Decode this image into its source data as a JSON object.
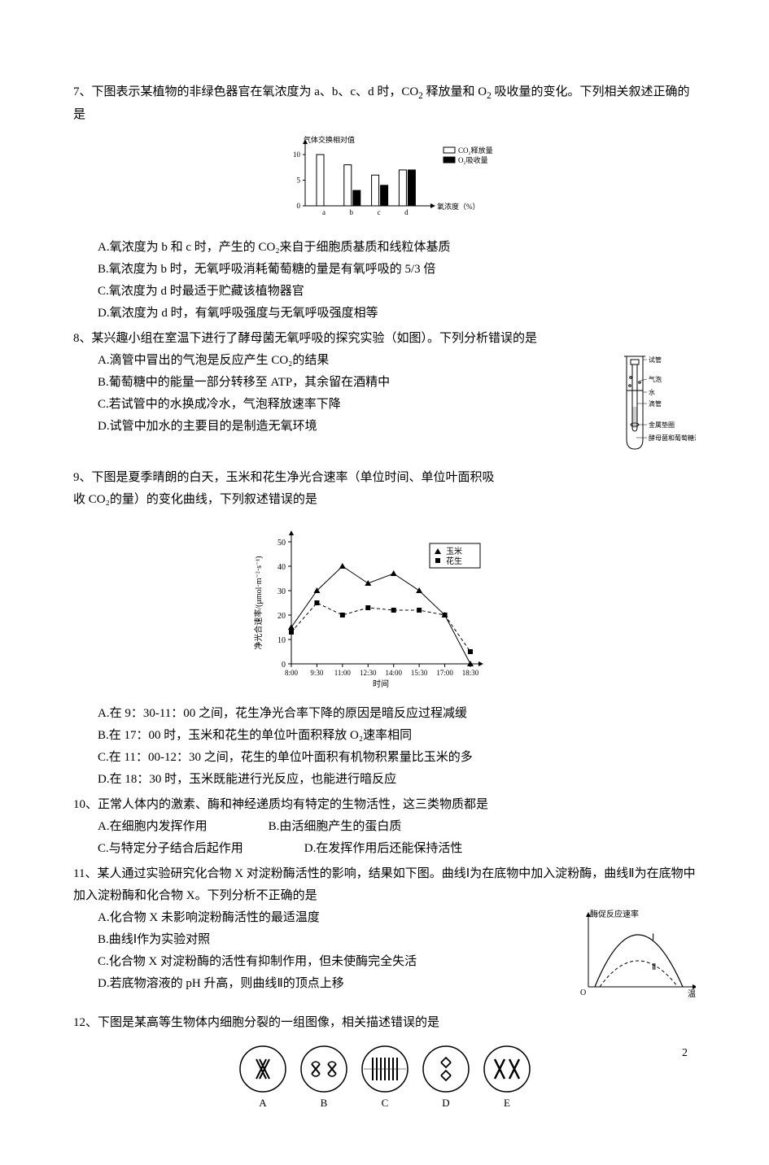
{
  "page_number": "2",
  "q7": {
    "stem_a": "7、下图表示某植物的非绿色器官在氧浓度为 a、b、c、d 时，CO",
    "stem_b": " 释放量和 O",
    "stem_c": " 吸收量的变化。下列相关叙述正确的是",
    "chart": {
      "type": "bar",
      "y_label": "气体交换相对值",
      "x_label": "氧浓度（%）",
      "legend": {
        "co2": "CO₂释放量",
        "o2": "O₂吸收量"
      },
      "categories": [
        "a",
        "b",
        "c",
        "d"
      ],
      "co2_values": [
        10,
        8,
        6,
        7
      ],
      "o2_values": [
        0,
        3,
        4,
        7
      ],
      "yticks": [
        0,
        5,
        10
      ],
      "co2_color": "#ffffff",
      "o2_color": "#000000",
      "bar_stroke": "#000000",
      "axis_color": "#000000",
      "font_size": 9
    },
    "optA": "A.氧浓度为 b 和 c 时，产生的 CO₂来自于细胞质基质和线粒体基质",
    "optB": "B.氧浓度为 b 时，无氧呼吸消耗葡萄糖的量是有氧呼吸的 5/3 倍",
    "optC": "C.氧浓度为 d 时最适于贮藏该植物器官",
    "optD": "D.氧浓度为 d 时，有氧呼吸强度与无氧呼吸强度相等"
  },
  "q8": {
    "stem": "8、某兴趣小组在室温下进行了酵母菌无氧呼吸的探究实验（如图）。下列分析错误的是",
    "optA": "A.滴管中冒出的气泡是反应产生 CO₂的结果",
    "optB": "B.葡萄糖中的能量一部分转移至 ATP，其余留在酒精中",
    "optC": "C.若试管中的水换成冷水，气泡释放速率下降",
    "optD": "D.试管中加水的主要目的是制造无氧环境",
    "diagram_labels": {
      "l1": "试管",
      "l2": "气泡",
      "l3": "水",
      "l4": "滴管",
      "l5": "金属垫圈",
      "l6": "酵母菌和葡萄糖溶液"
    }
  },
  "q9": {
    "stem_a": "9、下图是夏季晴朗的白天，玉米和花生净光合速率（单位时间、单位叶面积吸",
    "stem_b": "收 CO₂的量）的变化曲线，下列叙述错误的是",
    "chart": {
      "type": "line",
      "x_label": "时间",
      "y_label": "净光合速率/(μmol·m⁻²·s⁻¹)",
      "xticks": [
        "8:00",
        "9:30",
        "11:00",
        "12:30",
        "14:00",
        "15:30",
        "17:00",
        "18:30"
      ],
      "yticks": [
        0,
        10,
        20,
        30,
        40,
        50
      ],
      "ylim": [
        0,
        50
      ],
      "series": {
        "yumi": {
          "label": "玉米",
          "marker": "triangle",
          "color": "#000000",
          "values": [
            15,
            30,
            40,
            33,
            37,
            30,
            20,
            0
          ]
        },
        "huasheng": {
          "label": "花生",
          "marker": "square",
          "color": "#000000",
          "values": [
            13,
            25,
            20,
            23,
            22,
            22,
            20,
            5
          ]
        }
      },
      "axis_color": "#000000",
      "font_size": 10
    },
    "optA": "A.在 9：30-11：00 之间，花生净光合率下降的原因是暗反应过程减缓",
    "optB": "B.在 17：00 时，玉米和花生的单位叶面积释放 O₂速率相同",
    "optC": "C.在 11：00-12：30 之间，花生的单位叶面积有机物积累量比玉米的多",
    "optD": "D.在 18：30 时，玉米既能进行光反应，也能进行暗反应"
  },
  "q10": {
    "stem": "10、正常人体内的激素、酶和神经递质均有特定的生物活性，这三类物质都是",
    "optA": "A.在细胞内发挥作用",
    "optB": "B.由活细胞产生的蛋白质",
    "optC": "C.与特定分子结合后起作用",
    "optD": "D.在发挥作用后还能保持活性"
  },
  "q11": {
    "stem": "11、某人通过实验研究化合物 X 对淀粉酶活性的影响，结果如下图。曲线Ⅰ为在底物中加入淀粉酶，曲线Ⅱ为在底物中加入淀粉酶和化合物 X。下列分析不正确的是",
    "optA": "A.化合物 X 未影响淀粉酶活性的最适温度",
    "optB": "B.曲线Ⅰ作为实验对照",
    "optC": "C.化合物 X 对淀粉酶的活性有抑制作用，但未使酶完全失活",
    "optD": "D.若底物溶液的 pH 升高，则曲线Ⅱ的顶点上移",
    "chart": {
      "type": "line",
      "y_label": "酶促反应速率",
      "x_label": "温度",
      "curves": {
        "I": "Ⅰ",
        "II": "Ⅱ"
      },
      "I_color": "#000000",
      "II_dash": "4,3",
      "axis_color": "#000000",
      "font_size": 10
    }
  },
  "q12": {
    "stem": "12、下图是某高等生物体内细胞分裂的一组图像，相关描述错误的是",
    "labels": [
      "A",
      "B",
      "C",
      "D",
      "E"
    ]
  }
}
